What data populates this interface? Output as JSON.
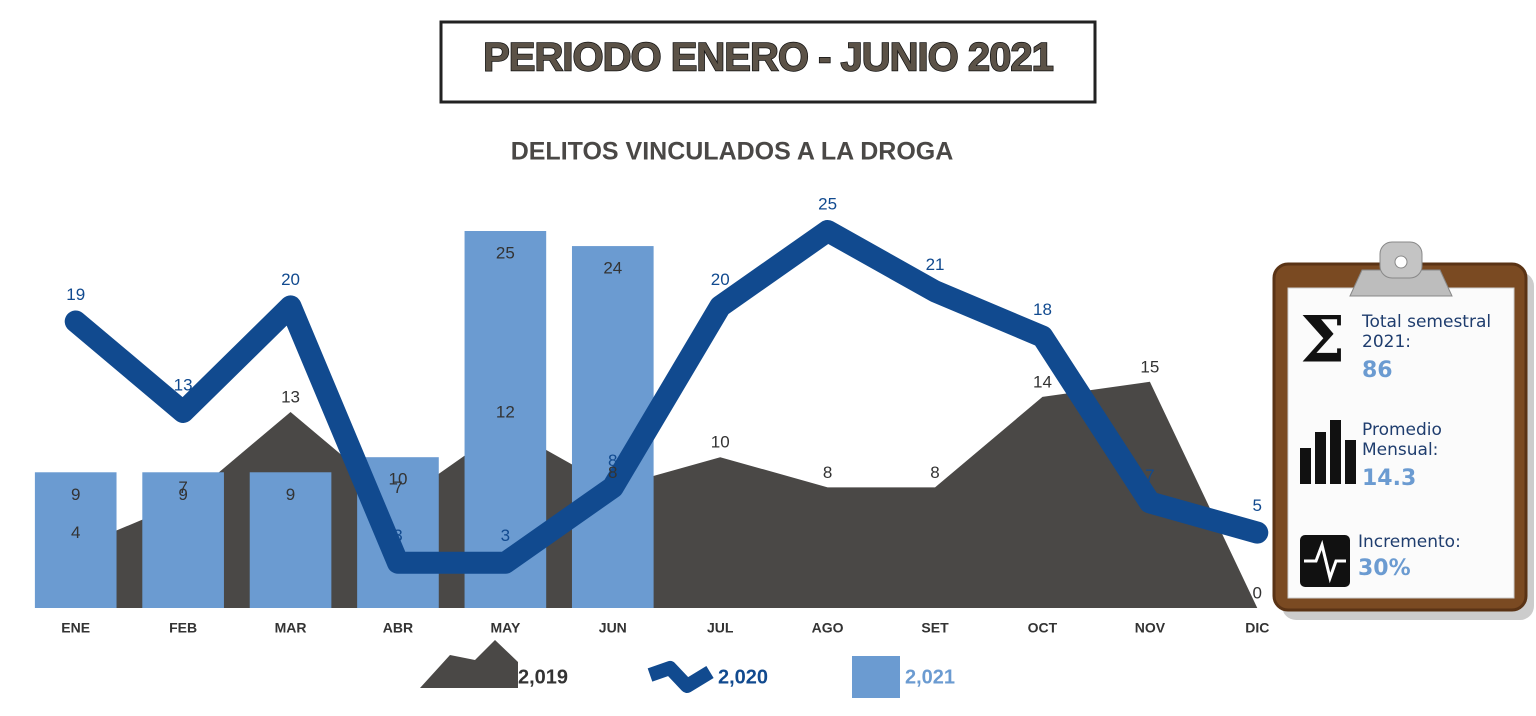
{
  "chart_data": {
    "type": "combo",
    "header": "PERIODO ENERO - JUNIO 2021",
    "title": "DELITOS VINCULADOS A LA DROGA",
    "categories": [
      "ENE",
      "FEB",
      "MAR",
      "ABR",
      "MAY",
      "JUN",
      "JUL",
      "AGO",
      "SET",
      "OCT",
      "NOV",
      "DIC"
    ],
    "ylim": [
      0,
      25
    ],
    "series": [
      {
        "name": "2,019",
        "type": "area",
        "color": "#4a4846",
        "values": [
          4,
          7,
          13,
          7,
          12,
          8,
          10,
          8,
          8,
          14,
          15,
          0
        ]
      },
      {
        "name": "2,021",
        "type": "bar",
        "color": "#6b9bd1",
        "values": [
          9,
          9,
          9,
          10,
          25,
          24,
          null,
          null,
          null,
          null,
          null,
          null
        ]
      },
      {
        "name": "2,020",
        "type": "line",
        "color": "#114a8f",
        "values": [
          19,
          13,
          20,
          3,
          3,
          8,
          20,
          25,
          21,
          18,
          7,
          5
        ]
      }
    ],
    "panel": [
      {
        "label": "Total semestral 2021:",
        "value": "86"
      },
      {
        "label": "Promedio Mensual:",
        "value": "14.3"
      },
      {
        "label": "Incremento:",
        "value": "30%"
      }
    ]
  }
}
